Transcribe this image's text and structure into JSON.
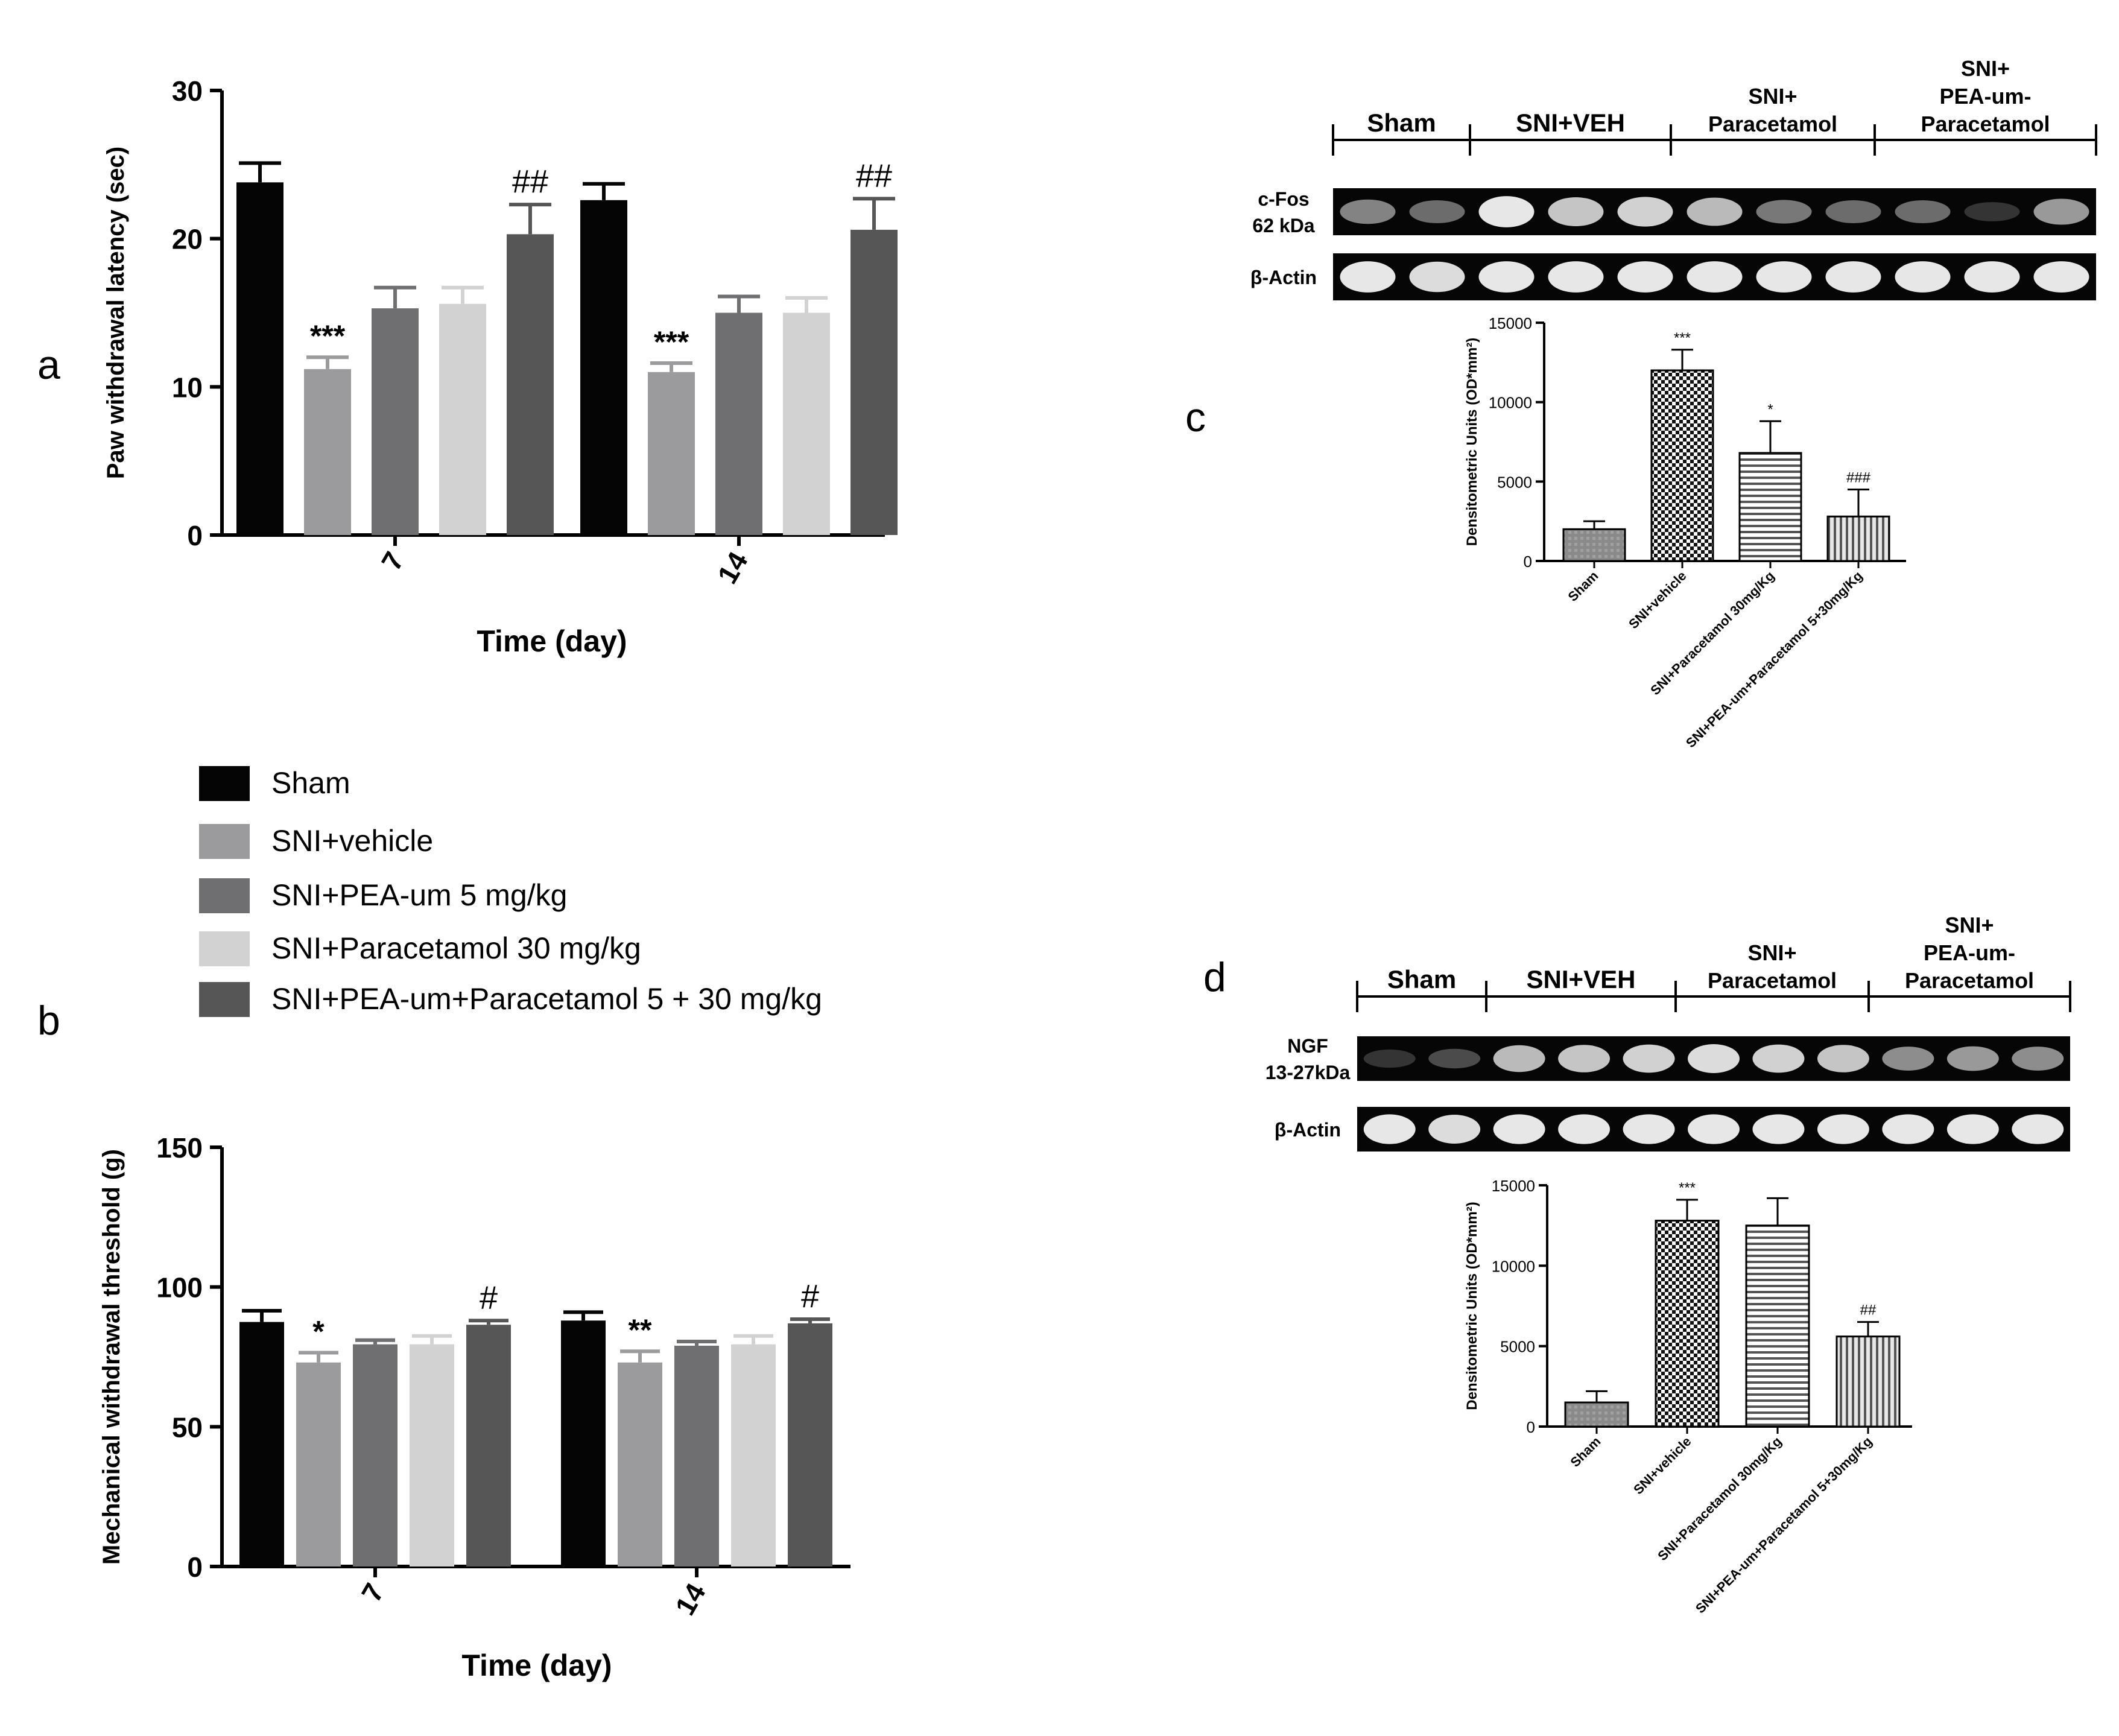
{
  "panel_labels": {
    "a": "a",
    "b": "b",
    "c": "c",
    "d": "d"
  },
  "legend": {
    "items": [
      {
        "label": "Sham",
        "color": "#050505"
      },
      {
        "label": "SNI+vehicle",
        "color": "#9b9b9e"
      },
      {
        "label": "SNI+PEA-um 5 mg/kg",
        "color": "#6f6f71"
      },
      {
        "label": "SNI+Paracetamol 30 mg/kg",
        "color": "#d2d2d3"
      },
      {
        "label": "SNI+PEA-um+Paracetamol 5 + 30 mg/kg",
        "color": "#565657"
      }
    ]
  },
  "blot_c": {
    "groups": [
      "Sham",
      "SNI+VEH",
      "SNI+\nParacetamol",
      "SNI+\nPEA-um-\nParacetamol"
    ],
    "row1_label": "c-Fos\n62 kDa",
    "row2_label": "β-Actin",
    "row1_intensity": [
      0.5,
      0.4,
      0.95,
      0.8,
      0.85,
      0.75,
      0.45,
      0.4,
      0.4,
      0.15,
      0.6
    ],
    "row2_intensity": [
      0.95,
      0.9,
      0.95,
      0.95,
      0.95,
      0.95,
      0.95,
      0.95,
      0.95,
      0.95,
      0.95
    ]
  },
  "blot_d": {
    "groups": [
      "Sham",
      "SNI+VEH",
      "SNI+\nParacetamol",
      "SNI+\nPEA-um-\nParacetamol"
    ],
    "row1_label": "NGF\n13-27kDa",
    "row2_label": "β-Actin",
    "row1_intensity": [
      0.15,
      0.25,
      0.75,
      0.8,
      0.85,
      0.9,
      0.85,
      0.8,
      0.55,
      0.6,
      0.55
    ],
    "row2_intensity": [
      0.95,
      0.9,
      0.95,
      0.95,
      0.95,
      0.95,
      0.95,
      0.95,
      0.95,
      0.95,
      0.95
    ]
  },
  "chart_data": [
    {
      "id": "a",
      "type": "bar",
      "categories": [
        "7",
        "14"
      ],
      "series": [
        {
          "name": "Sham",
          "values": [
            23.8,
            22.6
          ],
          "errors": [
            1.3,
            1.1
          ],
          "annotations": [
            "",
            ""
          ]
        },
        {
          "name": "SNI+vehicle",
          "values": [
            11.2,
            11.0
          ],
          "errors": [
            0.8,
            0.6
          ],
          "annotations": [
            "***",
            "***"
          ]
        },
        {
          "name": "SNI+PEA-um 5 mg/kg",
          "values": [
            15.3,
            15.0
          ],
          "errors": [
            1.4,
            1.1
          ],
          "annotations": [
            "",
            ""
          ]
        },
        {
          "name": "SNI+Paracetamol 30 mg/kg",
          "values": [
            15.6,
            15.0
          ],
          "errors": [
            1.1,
            1.0
          ],
          "annotations": [
            "",
            ""
          ]
        },
        {
          "name": "SNI+PEA-um+Paracetamol 5 + 30 mg/kg",
          "values": [
            20.3,
            20.6
          ],
          "errors": [
            2.0,
            2.1
          ],
          "annotations": [
            "##",
            "##"
          ]
        }
      ],
      "xlabel": "Time (day)",
      "ylabel": "Paw withdrawal latency (sec)",
      "ylim": [
        0,
        30
      ],
      "yticks": [
        "0",
        "10",
        "20",
        "30"
      ]
    },
    {
      "id": "b",
      "type": "bar",
      "categories": [
        "7",
        "14"
      ],
      "series": [
        {
          "name": "Sham",
          "values": [
            87.5,
            88.0
          ],
          "errors": [
            4.0,
            3.0
          ],
          "annotations": [
            "",
            ""
          ]
        },
        {
          "name": "SNI+vehicle",
          "values": [
            73.0,
            73.0
          ],
          "errors": [
            3.5,
            4.0
          ],
          "annotations": [
            "*",
            "**"
          ]
        },
        {
          "name": "SNI+PEA-um 5 mg/kg",
          "values": [
            79.5,
            79.0
          ],
          "errors": [
            1.5,
            1.5
          ],
          "annotations": [
            "",
            ""
          ]
        },
        {
          "name": "SNI+Paracetamol 30 mg/kg",
          "values": [
            79.5,
            79.5
          ],
          "errors": [
            3.0,
            3.0
          ],
          "annotations": [
            "",
            ""
          ]
        },
        {
          "name": "SNI+PEA-um+Paracetamol 5 + 30 mg/kg",
          "values": [
            86.5,
            87.0
          ],
          "errors": [
            1.5,
            1.5
          ],
          "annotations": [
            "#",
            "#"
          ]
        }
      ],
      "xlabel": "Time (day)",
      "ylabel": "Mechanical withdrawal threshold (g)",
      "ylim": [
        0,
        150
      ],
      "yticks": [
        "0",
        "50",
        "100",
        "150"
      ]
    },
    {
      "id": "c",
      "type": "bar",
      "categories": [
        "Sham",
        "SNI+vehicle",
        "SNI+Paracetamol 30mg/Kg",
        "SNI+PEA-um+Paracetamol 5+30mg/Kg"
      ],
      "values": [
        2000,
        12000,
        6800,
        2800
      ],
      "errors": [
        500,
        1300,
        2000,
        1700
      ],
      "annotations": [
        "",
        "***",
        "*",
        "###"
      ],
      "ylabel": "Densitometric Units (OD*mm²)",
      "ylim": [
        0,
        15000
      ],
      "yticks": [
        "0",
        "5000",
        "10000",
        "15000"
      ]
    },
    {
      "id": "d",
      "type": "bar",
      "categories": [
        "Sham",
        "SNI+vehicle",
        "SNI+Paracetamol 30mg/Kg",
        "SNI+PEA-um+Paracetamol 5+30mg/Kg"
      ],
      "values": [
        1500,
        12800,
        12500,
        5600
      ],
      "errors": [
        700,
        1300,
        1700,
        900
      ],
      "annotations": [
        "",
        "***",
        "",
        "##"
      ],
      "ylabel": "Densitometric Units (OD*mm²)",
      "ylim": [
        0,
        15000
      ],
      "yticks": [
        "0",
        "5000",
        "10000",
        "15000"
      ]
    }
  ]
}
